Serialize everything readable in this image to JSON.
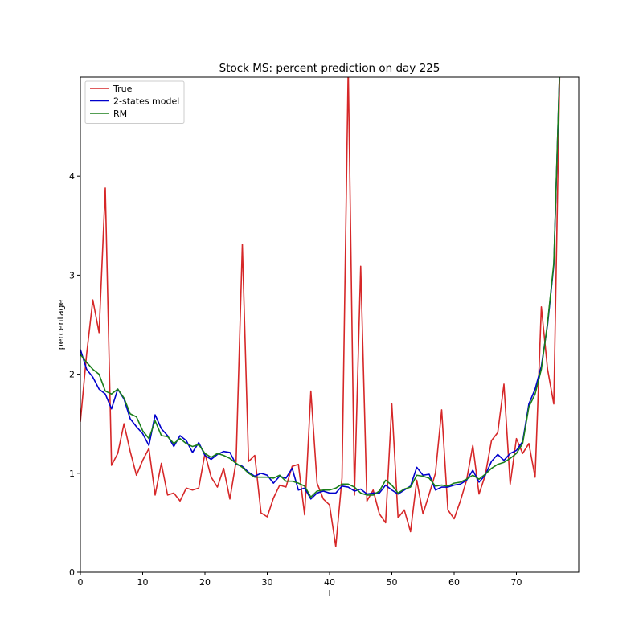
{
  "chart_data": {
    "type": "line",
    "title": "Stock MS: percent prediction on day 225",
    "xlabel": "l",
    "ylabel": "percentage",
    "xlim": [
      0,
      80
    ],
    "ylim": [
      0,
      5
    ],
    "xticks": [
      0,
      10,
      20,
      30,
      40,
      50,
      60,
      70
    ],
    "yticks": [
      0,
      1,
      2,
      3,
      4
    ],
    "grid": false,
    "legend_position": "top-left",
    "x": [
      0,
      1,
      2,
      3,
      4,
      5,
      6,
      7,
      8,
      9,
      10,
      11,
      12,
      13,
      14,
      15,
      16,
      17,
      18,
      19,
      20,
      21,
      22,
      23,
      24,
      25,
      26,
      27,
      28,
      29,
      30,
      31,
      32,
      33,
      34,
      35,
      36,
      37,
      38,
      39,
      40,
      41,
      42,
      43,
      44,
      45,
      46,
      47,
      48,
      49,
      50,
      51,
      52,
      53,
      54,
      55,
      56,
      57,
      58,
      59,
      60,
      61,
      62,
      63,
      64,
      65,
      66,
      67,
      68,
      69,
      70,
      71,
      72,
      73,
      74,
      75,
      76,
      77
    ],
    "series": [
      {
        "name": "True",
        "color": "#d62728",
        "values": [
          1.52,
          2.2,
          2.75,
          2.42,
          3.88,
          1.08,
          1.2,
          1.5,
          1.22,
          0.98,
          1.13,
          1.25,
          0.78,
          1.1,
          0.78,
          0.8,
          0.72,
          0.85,
          0.83,
          0.85,
          1.2,
          0.96,
          0.86,
          1.05,
          0.74,
          1.12,
          3.31,
          1.12,
          1.18,
          0.6,
          0.56,
          0.75,
          0.88,
          0.86,
          1.07,
          1.09,
          0.58,
          1.83,
          0.9,
          0.74,
          0.68,
          0.26,
          0.95,
          5.1,
          0.78,
          3.09,
          0.72,
          0.83,
          0.59,
          0.5,
          1.7,
          0.55,
          0.63,
          0.41,
          0.93,
          0.59,
          0.79,
          1.0,
          1.64,
          0.63,
          0.54,
          0.72,
          0.93,
          1.28,
          0.79,
          0.98,
          1.33,
          1.41,
          1.9,
          0.89,
          1.35,
          1.2,
          1.3,
          0.96,
          2.68,
          2.05,
          1.7,
          5.2
        ]
      },
      {
        "name": "2-states model",
        "color": "#0000cc",
        "values": [
          2.25,
          2.05,
          1.97,
          1.85,
          1.8,
          1.65,
          1.85,
          1.75,
          1.55,
          1.47,
          1.4,
          1.28,
          1.59,
          1.45,
          1.38,
          1.27,
          1.38,
          1.33,
          1.21,
          1.31,
          1.18,
          1.14,
          1.19,
          1.22,
          1.21,
          1.09,
          1.07,
          1.01,
          0.97,
          1.0,
          0.98,
          0.9,
          0.97,
          0.95,
          1.05,
          0.83,
          0.85,
          0.74,
          0.8,
          0.82,
          0.8,
          0.8,
          0.87,
          0.86,
          0.82,
          0.84,
          0.79,
          0.8,
          0.8,
          0.88,
          0.83,
          0.79,
          0.83,
          0.87,
          1.06,
          0.98,
          0.99,
          0.83,
          0.86,
          0.86,
          0.88,
          0.89,
          0.93,
          1.03,
          0.91,
          0.98,
          1.12,
          1.19,
          1.13,
          1.2,
          1.23,
          1.32,
          1.7,
          1.85,
          2.08,
          2.5,
          3.1,
          5.2
        ]
      },
      {
        "name": "RM",
        "color": "#1a7f1a",
        "values": [
          2.2,
          2.12,
          2.05,
          2.0,
          1.83,
          1.8,
          1.85,
          1.76,
          1.6,
          1.57,
          1.43,
          1.35,
          1.53,
          1.38,
          1.37,
          1.3,
          1.35,
          1.3,
          1.27,
          1.29,
          1.2,
          1.16,
          1.2,
          1.18,
          1.15,
          1.1,
          1.06,
          1.0,
          0.96,
          0.96,
          0.96,
          0.95,
          0.98,
          0.92,
          0.92,
          0.9,
          0.87,
          0.76,
          0.82,
          0.83,
          0.83,
          0.85,
          0.89,
          0.89,
          0.86,
          0.8,
          0.78,
          0.78,
          0.82,
          0.93,
          0.88,
          0.8,
          0.84,
          0.86,
          0.98,
          0.97,
          0.95,
          0.87,
          0.88,
          0.87,
          0.9,
          0.91,
          0.94,
          0.98,
          0.94,
          0.99,
          1.05,
          1.09,
          1.11,
          1.15,
          1.2,
          1.3,
          1.67,
          1.8,
          2.05,
          2.52,
          3.12,
          5.2
        ]
      }
    ]
  }
}
